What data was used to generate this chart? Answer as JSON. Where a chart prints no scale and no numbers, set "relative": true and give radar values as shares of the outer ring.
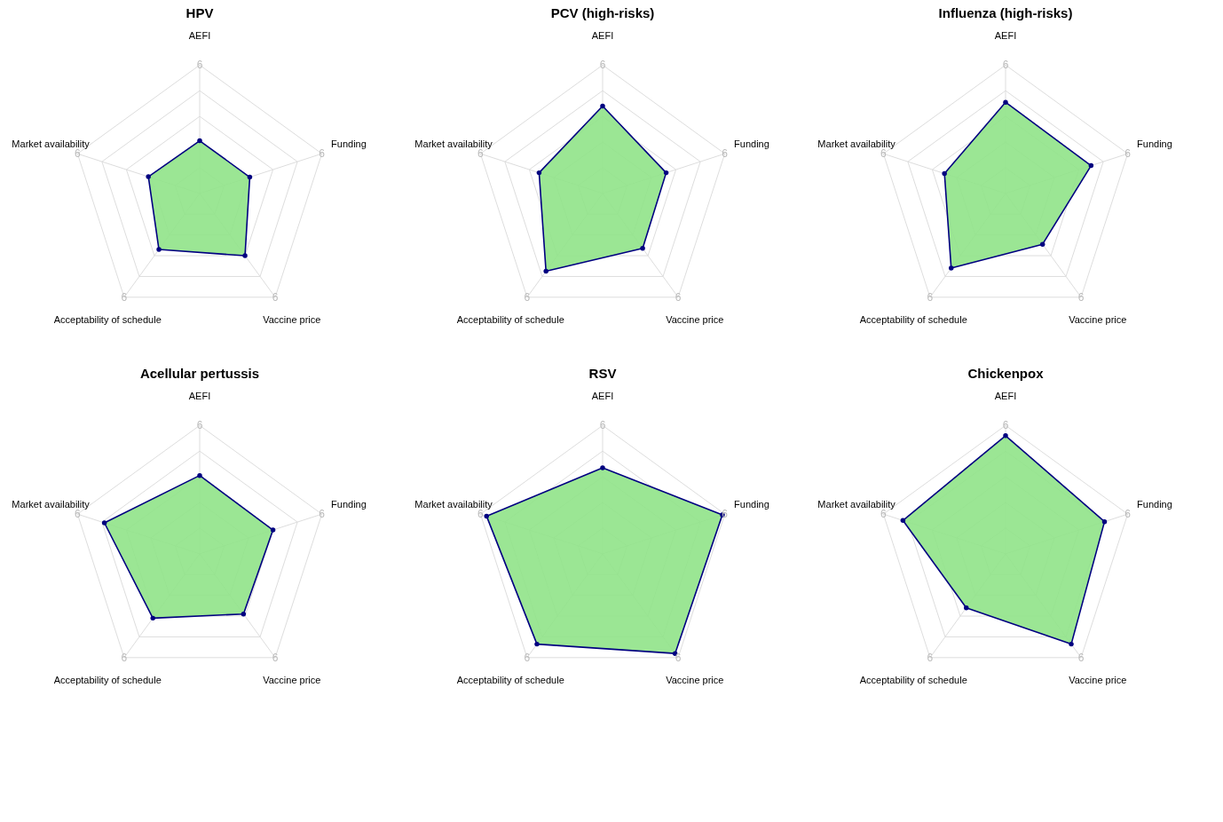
{
  "chart_data": [
    {
      "type": "radar",
      "title": "HPV",
      "categories": [
        "AEFI",
        "Funding",
        "Vaccine price",
        "Acceptability of schedule",
        "Market availability"
      ],
      "relative": true,
      "grid": true,
      "marker": "circle",
      "annotations": [
        "6",
        "6",
        "6",
        "6",
        "6"
      ],
      "series": [
        {
          "color": "#000080",
          "values": [
            0.41,
            0.41,
            0.6,
            0.54,
            0.42
          ]
        }
      ]
    },
    {
      "type": "radar",
      "title": "PCV (high-risks)",
      "categories": [
        "AEFI",
        "Funding",
        "Vaccine price",
        "Acceptability of schedule",
        "Market availability"
      ],
      "relative": true,
      "grid": true,
      "marker": "circle",
      "annotations": [
        "6",
        "6",
        "6",
        "6",
        "6"
      ],
      "series": [
        {
          "color": "#000080",
          "values": [
            0.68,
            0.52,
            0.53,
            0.75,
            0.52
          ]
        }
      ]
    },
    {
      "type": "radar",
      "title": "Influenza (high-risks)",
      "categories": [
        "AEFI",
        "Funding",
        "Vaccine price",
        "Acceptability of schedule",
        "Market availability"
      ],
      "relative": true,
      "grid": true,
      "marker": "circle",
      "annotations": [
        "6",
        "6",
        "6",
        "6",
        "6"
      ],
      "series": [
        {
          "color": "#000080",
          "values": [
            0.71,
            0.7,
            0.49,
            0.72,
            0.5
          ]
        }
      ]
    },
    {
      "type": "radar",
      "title": "Acellular pertussis",
      "categories": [
        "AEFI",
        "Funding",
        "Vaccine price",
        "Acceptability of schedule",
        "Market availability"
      ],
      "relative": true,
      "grid": true,
      "marker": "circle",
      "annotations": [
        "6",
        "6",
        "6",
        "6",
        "6"
      ],
      "series": [
        {
          "color": "#000080",
          "values": [
            0.61,
            0.6,
            0.58,
            0.62,
            0.78
          ]
        }
      ]
    },
    {
      "type": "radar",
      "title": "RSV",
      "categories": [
        "AEFI",
        "Funding",
        "Vaccine price",
        "Acceptability of schedule",
        "Market availability"
      ],
      "relative": true,
      "grid": true,
      "marker": "circle",
      "annotations": [
        "6",
        "6",
        "6",
        "6",
        "6"
      ],
      "series": [
        {
          "color": "#000080",
          "values": [
            0.67,
            0.98,
            0.96,
            0.87,
            0.95
          ]
        }
      ]
    },
    {
      "type": "radar",
      "title": "Chickenpox",
      "categories": [
        "AEFI",
        "Funding",
        "Vaccine price",
        "Acceptability of schedule",
        "Market availability"
      ],
      "relative": true,
      "grid": true,
      "marker": "circle",
      "annotations": [
        "6",
        "6",
        "6",
        "6",
        "6"
      ],
      "series": [
        {
          "color": "#000080",
          "values": [
            0.92,
            0.81,
            0.87,
            0.52,
            0.84
          ]
        }
      ]
    }
  ]
}
